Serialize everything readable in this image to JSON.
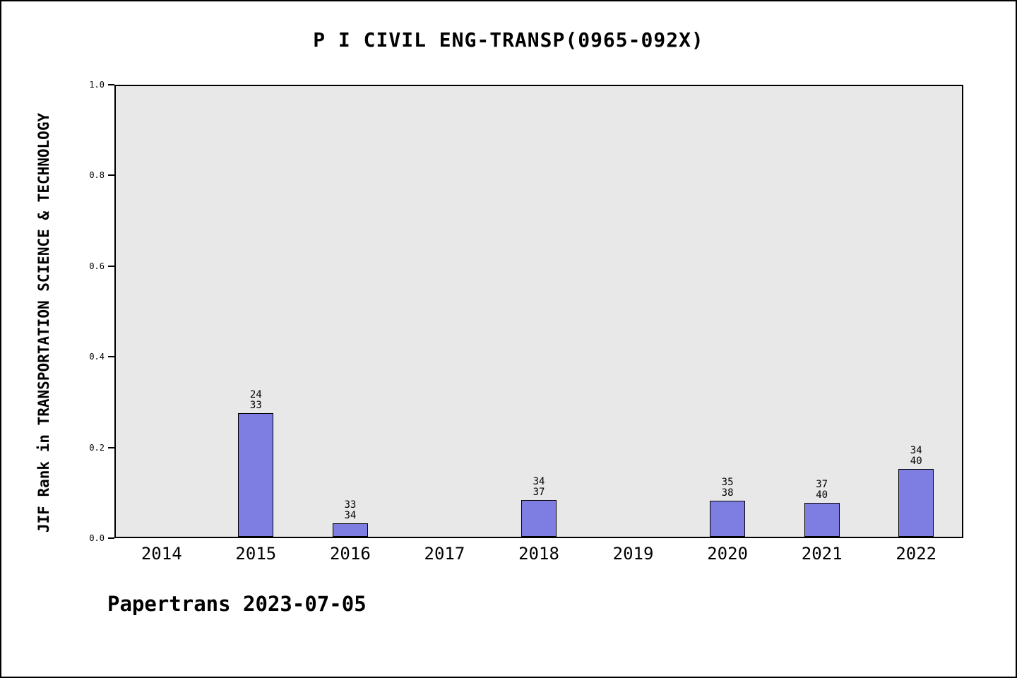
{
  "title": "P I CIVIL ENG-TRANSP(0965-092X)",
  "footer": "Papertrans 2023-07-05",
  "chart_data": {
    "type": "bar",
    "title": "P I CIVIL ENG-TRANSP(0965-092X)",
    "ylabel": "JIF Rank in TRANSPORTATION SCIENCE & TECHNOLOGY",
    "xlabel": "",
    "categories": [
      "2014",
      "2015",
      "2016",
      "2017",
      "2018",
      "2019",
      "2020",
      "2021",
      "2022"
    ],
    "values": [
      null,
      0.273,
      0.029,
      null,
      0.081,
      null,
      0.079,
      0.075,
      0.15
    ],
    "bar_labels": [
      null,
      [
        "24",
        "33"
      ],
      [
        "33",
        "34"
      ],
      null,
      [
        "34",
        "37"
      ],
      null,
      [
        "35",
        "38"
      ],
      [
        "37",
        "40"
      ],
      [
        "34",
        "40"
      ]
    ],
    "yticks": [
      0.0,
      0.2,
      0.4,
      0.6,
      0.8,
      1.0
    ],
    "ytick_labels": [
      "0.0",
      "0.2",
      "0.4",
      "0.6",
      "0.8",
      "1.0"
    ],
    "ylim": [
      0,
      1
    ],
    "grid": false,
    "legend": false,
    "bar_color": "#7d7de2",
    "bar_border_color": "#000000",
    "plot_background": "#e8e8e8"
  }
}
